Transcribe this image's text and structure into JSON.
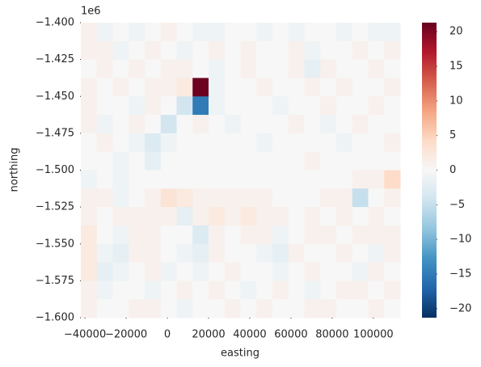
{
  "chart_data": {
    "type": "heatmap",
    "xlabel": "easting",
    "ylabel": "northing",
    "y_offset_text": "1e6",
    "colormap": "RdBu_r",
    "xlim": [
      -42000,
      113000
    ],
    "ylim": [
      -1600000,
      -1400000
    ],
    "xticks": [
      {
        "value": -40000,
        "label": "−40000"
      },
      {
        "value": -20000,
        "label": "−20000"
      },
      0,
      20000,
      40000,
      60000,
      80000,
      100000
    ],
    "yticks": [
      {
        "value": -1400000,
        "label": "−1.400"
      },
      {
        "value": -1425000,
        "label": "−1.425"
      },
      {
        "value": -1450000,
        "label": "−1.450"
      },
      {
        "value": -1475000,
        "label": "−1.475"
      },
      {
        "value": -1500000,
        "label": "−1.500"
      },
      {
        "value": -1525000,
        "label": "−1.525"
      },
      {
        "value": -1550000,
        "label": "−1.550"
      },
      {
        "value": -1575000,
        "label": "−1.575"
      },
      {
        "value": -1600000,
        "label": "−1.600"
      }
    ],
    "clim": [
      -21.3,
      21.3
    ],
    "cticks": [
      {
        "value": -20,
        "label": "−20"
      },
      {
        "value": -15,
        "label": "−15"
      },
      {
        "value": -10,
        "label": "−10"
      },
      {
        "value": -5,
        "label": "−5"
      },
      0,
      5,
      10,
      15,
      20
    ],
    "z": [
      [
        1,
        -1,
        0,
        -1,
        0,
        1,
        0,
        -1,
        -1,
        0,
        0,
        -1,
        0,
        -1,
        0,
        0,
        -1,
        0,
        -1,
        -1
      ],
      [
        1,
        1,
        -1,
        0,
        1,
        0,
        -1,
        0,
        1,
        0,
        1,
        0,
        0,
        1,
        -1,
        0,
        0,
        1,
        0,
        1
      ],
      [
        0,
        1,
        0,
        1,
        0,
        1,
        1,
        0,
        -1,
        0,
        1,
        0,
        0,
        1,
        -2,
        1,
        0,
        0,
        1,
        0
      ],
      [
        1,
        0,
        1,
        0,
        1,
        1,
        2,
        21,
        -1,
        0,
        0,
        1,
        0,
        0,
        1,
        0,
        1,
        0,
        0,
        1
      ],
      [
        1,
        0,
        0,
        -1,
        1,
        0,
        -4,
        -15,
        -1,
        0,
        0,
        0,
        -1,
        0,
        0,
        1,
        0,
        0,
        1,
        0
      ],
      [
        1,
        -1,
        0,
        1,
        0,
        -4,
        0,
        1,
        0,
        -1,
        0,
        0,
        0,
        1,
        0,
        -1,
        0,
        1,
        0,
        0
      ],
      [
        0,
        1,
        0,
        -1,
        -3,
        -1,
        0,
        0,
        0,
        0,
        0,
        -1,
        0,
        0,
        0,
        0,
        -1,
        0,
        0,
        1
      ],
      [
        0,
        0,
        -1,
        0,
        -2,
        0,
        0,
        0,
        0,
        0,
        0,
        0,
        0,
        0,
        1,
        0,
        0,
        0,
        0,
        0
      ],
      [
        -1,
        0,
        -1,
        0,
        0,
        0,
        0,
        0,
        0,
        0,
        0,
        0,
        0,
        0,
        0,
        0,
        0,
        1,
        1,
        4
      ],
      [
        1,
        1,
        -1,
        0,
        1,
        3,
        2,
        1,
        1,
        1,
        1,
        1,
        0,
        0,
        0,
        1,
        1,
        -5,
        0,
        1
      ],
      [
        1,
        0,
        1,
        1,
        1,
        1,
        -2,
        1,
        2,
        1,
        2,
        1,
        1,
        0,
        1,
        0,
        1,
        0,
        1,
        0
      ],
      [
        2,
        0,
        -1,
        1,
        1,
        0,
        0,
        -3,
        1,
        0,
        1,
        1,
        -1,
        0,
        1,
        1,
        0,
        1,
        1,
        1
      ],
      [
        2,
        -1,
        -2,
        1,
        1,
        0,
        -1,
        -2,
        1,
        0,
        0,
        -1,
        -2,
        1,
        0,
        0,
        1,
        0,
        -1,
        1
      ],
      [
        2,
        -2,
        -1,
        0,
        1,
        -1,
        0,
        -1,
        0,
        1,
        0,
        0,
        -1,
        0,
        1,
        0,
        0,
        -1,
        1,
        0
      ],
      [
        1,
        -1,
        0,
        0,
        -1,
        0,
        1,
        0,
        1,
        0,
        -1,
        0,
        1,
        0,
        -1,
        0,
        1,
        1,
        0,
        1
      ],
      [
        1,
        0,
        0,
        1,
        1,
        0,
        -1,
        0,
        0,
        1,
        0,
        1,
        0,
        0,
        1,
        1,
        0,
        0,
        1,
        0
      ]
    ]
  }
}
